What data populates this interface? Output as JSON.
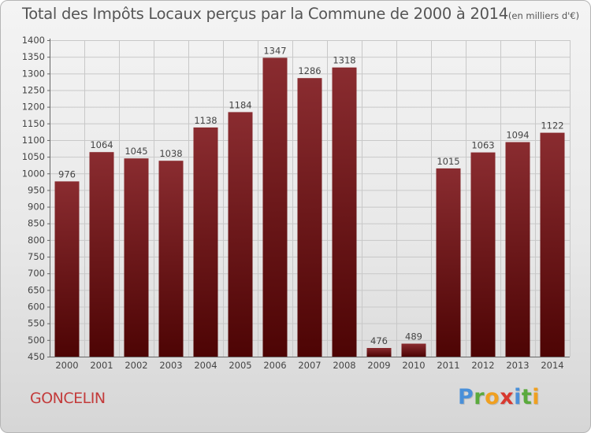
{
  "title": "Total des Impôts Locaux perçus par la Commune de 2000 à 2014",
  "title_unit": "(en milliers d'€)",
  "commune": "GONCELIN",
  "logo": {
    "text": "Proxiti",
    "letters": [
      "P",
      "r",
      "o",
      "x",
      "i",
      "t",
      "i"
    ],
    "colors": [
      "#4a90d9",
      "#5aaa3c",
      "#f0a020",
      "#d8382f",
      "#4a90d9",
      "#5aaa3c",
      "#f0a020"
    ]
  },
  "colors": {
    "bar_top": "#8a2c30",
    "bar_bottom": "#4d0404",
    "grid": "#c8c8c8",
    "title": "#555555",
    "commune": "#c33b3b"
  },
  "chart_data": {
    "type": "bar",
    "title": "Total des Impôts Locaux perçus par la Commune de 2000 à 2014",
    "categories": [
      "2000",
      "2001",
      "2002",
      "2003",
      "2004",
      "2005",
      "2006",
      "2007",
      "2008",
      "2009",
      "2010",
      "2011",
      "2012",
      "2013",
      "2014"
    ],
    "values": [
      976,
      1064,
      1045,
      1038,
      1138,
      1184,
      1347,
      1286,
      1318,
      476,
      489,
      1015,
      1063,
      1094,
      1122
    ],
    "ylim": [
      450,
      1400
    ],
    "yticks": [
      450,
      500,
      550,
      600,
      650,
      700,
      750,
      800,
      850,
      900,
      950,
      1000,
      1050,
      1100,
      1150,
      1200,
      1250,
      1300,
      1350,
      1400
    ],
    "grid": true,
    "xlabel": "",
    "ylabel": ""
  }
}
